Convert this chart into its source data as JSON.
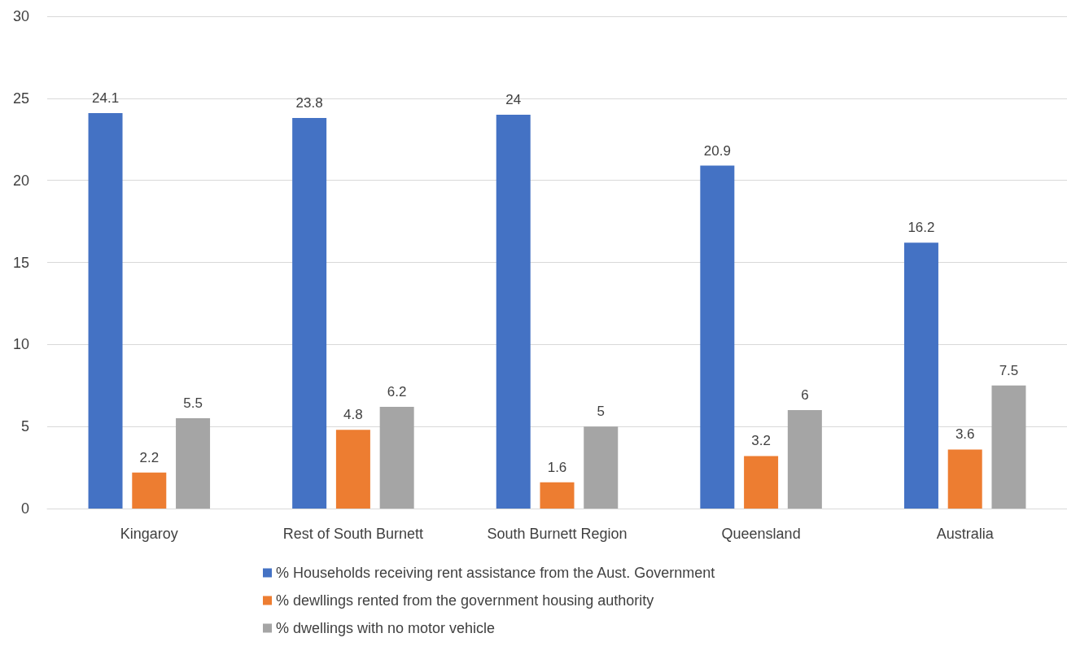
{
  "chart_data": {
    "type": "bar",
    "categories": [
      "Kingaroy",
      "Rest of South Burnett",
      "South Burnett Region",
      "Queensland",
      "Australia"
    ],
    "series": [
      {
        "name": "% Households receiving rent assistance from the Aust. Government",
        "color": "#4472c4",
        "values": [
          24.1,
          23.8,
          24,
          20.9,
          16.2
        ]
      },
      {
        "name": "% dewllings rented from the government housing authority",
        "color": "#ed7d31",
        "values": [
          2.2,
          4.8,
          1.6,
          3.2,
          3.6
        ]
      },
      {
        "name": "% dwellings with no motor vehicle",
        "color": "#a5a5a5",
        "values": [
          5.5,
          6.2,
          5,
          6,
          7.5
        ]
      }
    ],
    "ylim": [
      0,
      30
    ],
    "yticks": [
      0,
      5,
      10,
      15,
      20,
      25,
      30
    ],
    "grid": "y",
    "legend": "bottom",
    "data_labels": true
  }
}
